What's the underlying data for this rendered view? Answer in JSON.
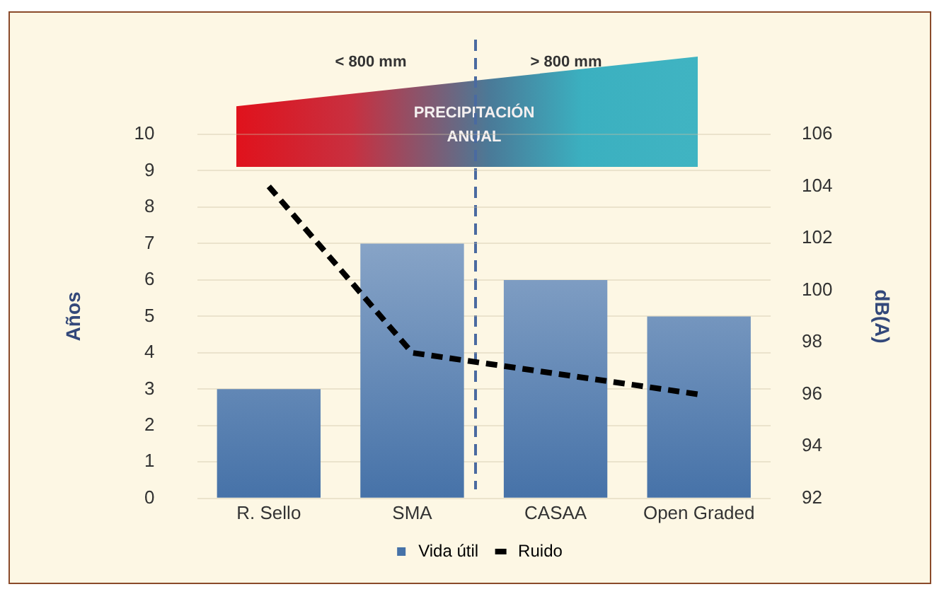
{
  "chart_data": {
    "type": "bar",
    "categories": [
      "R. Sello",
      "SMA",
      "CASAA",
      "Open Graded"
    ],
    "series": [
      {
        "name": "Vida útil",
        "color": "#4672a8",
        "values": [
          3,
          7,
          6,
          5
        ]
      },
      {
        "name": "Ruido",
        "type": "line",
        "axis": "y2",
        "color": "#000000",
        "line_style": "dashed",
        "marker": "none",
        "values": [
          104,
          97.6,
          96.8,
          96
        ]
      }
    ],
    "ylabel": "Años",
    "y2label": "dB(A)",
    "ylim": [
      0,
      10
    ],
    "yticks": [
      0,
      1,
      2,
      3,
      4,
      5,
      6,
      7,
      8,
      9,
      10
    ],
    "y2lim": [
      92,
      106
    ],
    "y2ticks": [
      92,
      94,
      96,
      98,
      100,
      102,
      104,
      106
    ],
    "annotations": [
      "< 800 mm",
      "> 800 mm",
      "PRECIPITACIÓN ANUAL"
    ],
    "grid": "y",
    "legend": "bottom"
  }
}
